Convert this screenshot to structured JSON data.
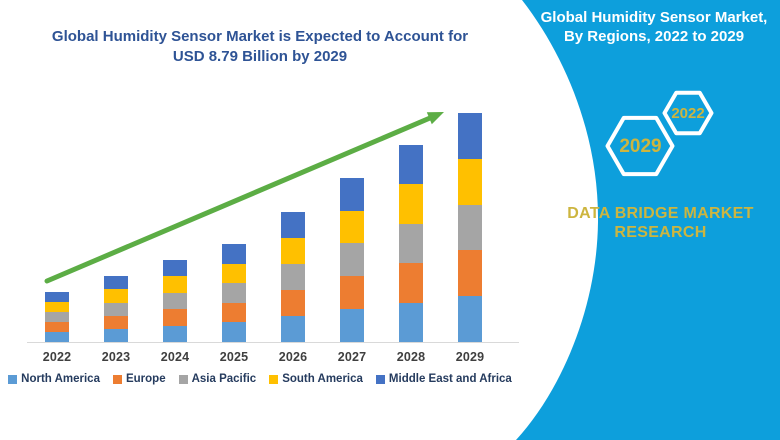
{
  "left_panel": {
    "title_line1": "Global Humidity Sensor Market is Expected to Account for",
    "title_line2": "USD 8.79 Billion by 2029",
    "title_color": "#2E5395"
  },
  "chart_data": {
    "type": "bar",
    "stacked": true,
    "title": "Global Humidity Sensor Market is Expected to Account for USD 8.79 Billion by 2029",
    "unit": "USD billion",
    "categories": [
      "2022",
      "2023",
      "2024",
      "2025",
      "2026",
      "2027",
      "2028",
      "2029"
    ],
    "totals": [
      1.92,
      2.52,
      3.15,
      3.76,
      4.99,
      6.3,
      7.56,
      8.79
    ],
    "series": [
      {
        "name": "North America",
        "color": "#5B9BD5",
        "values": [
          0.384,
          0.504,
          0.63,
          0.752,
          0.998,
          1.26,
          1.512,
          1.758
        ]
      },
      {
        "name": "Europe",
        "color": "#ED7D31",
        "values": [
          0.384,
          0.504,
          0.63,
          0.752,
          0.998,
          1.26,
          1.512,
          1.758
        ]
      },
      {
        "name": "Asia Pacific",
        "color": "#A5A5A5",
        "values": [
          0.384,
          0.504,
          0.63,
          0.752,
          0.998,
          1.26,
          1.512,
          1.758
        ]
      },
      {
        "name": "South America",
        "color": "#FFC000",
        "values": [
          0.384,
          0.504,
          0.63,
          0.752,
          0.998,
          1.26,
          1.512,
          1.758
        ]
      },
      {
        "name": "Middle East and Africa",
        "color": "#4472C4",
        "values": [
          0.384,
          0.504,
          0.63,
          0.752,
          0.998,
          1.26,
          1.512,
          1.758
        ]
      }
    ],
    "xlabel": "",
    "ylabel": "",
    "ylim": [
      0,
      8.79
    ],
    "grid": false,
    "y_axis_shown": false,
    "legend_position": "bottom",
    "trend_arrow": true,
    "trend_arrow_color": "#5CAD45",
    "axis_label_color": "#3F3F3F",
    "legend_text_color": "#253B5E"
  },
  "right_panel": {
    "title_line1": "Global Humidity Sensor Market,",
    "title_line2": "By Regions, 2022 to 2029",
    "background_color": "#0D9FDC",
    "hexagon_small_label": "2022",
    "hexagon_large_label": "2029",
    "hexagon_outline_color": "#FFFFFF",
    "accent_text_color": "#CDB53F",
    "brand_line1": "DATA BRIDGE MARKET",
    "brand_line2": "RESEARCH"
  }
}
